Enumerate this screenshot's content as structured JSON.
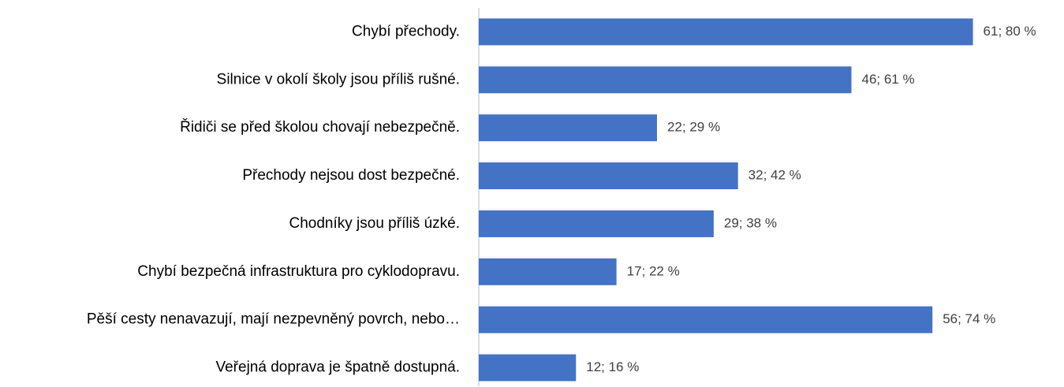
{
  "chart_data": {
    "type": "hbar",
    "categories": [
      "Chybí přechody.",
      "Silnice v okolí školy jsou příliš rušné.",
      "Řidiči se před školou chovají nebezpečně.",
      "Přechody nejsou dost bezpečné.",
      "Chodníky jsou příliš úzké.",
      "Chybí bezpečná infrastruktura pro cyklodopravu.",
      "Pěší cesty nenavazují, mají nezpevněný povrch, nebo…",
      "Veřejná doprava je špatně dostupná."
    ],
    "values": [
      61,
      46,
      22,
      32,
      29,
      17,
      56,
      12
    ],
    "value_labels": [
      "61; 80 %",
      "46; 61 %",
      "22; 29 %",
      "32; 42 %",
      "29; 38 %",
      "17; 22 %",
      "56; 74 %",
      "12; 16 %"
    ],
    "color": "#4472c4",
    "xlim": [
      0,
      70
    ]
  }
}
